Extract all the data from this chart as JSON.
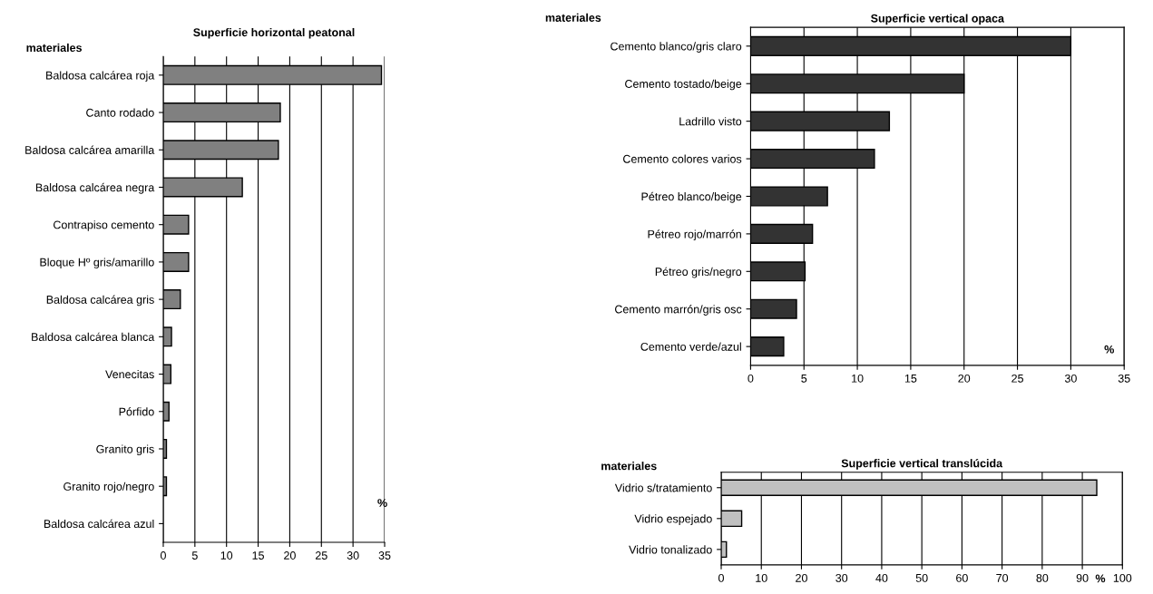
{
  "chart_data": [
    {
      "type": "bar",
      "orientation": "horizontal",
      "title": "Superficie horizontal peatonal",
      "ylabel": "materiales",
      "xlabel": "%",
      "categories": [
        "Baldosa calcárea roja",
        "Canto rodado",
        "Baldosa calcárea amarilla",
        "Baldosa calcárea negra",
        "Contrapiso cemento",
        "Bloque Hº gris/amarillo",
        "Baldosa calcárea gris",
        "Baldosa calcárea blanca",
        "Venecitas",
        "Pórfido",
        "Granito gris",
        "Granito rojo/negro",
        "Baldosa calcárea azul"
      ],
      "values": [
        34.5,
        18.5,
        18.2,
        12.5,
        4.0,
        4.0,
        2.7,
        1.3,
        1.2,
        0.9,
        0.5,
        0.5,
        0
      ],
      "color": "#808080",
      "xlim": [
        0,
        35
      ],
      "xticks": [
        0,
        5,
        10,
        15,
        20,
        25,
        30,
        35
      ],
      "grid": "x"
    },
    {
      "type": "bar",
      "orientation": "horizontal",
      "title": "Superficie vertical opaca",
      "ylabel": "materiales",
      "xlabel": "%",
      "categories": [
        "Cemento blanco/gris claro",
        "Cemento tostado/beige",
        "Ladrillo visto",
        "Cemento colores varios",
        "Pétreo blanco/beige",
        "Pétreo rojo/marrón",
        "Pétreo gris/negro",
        "Cemento marrón/gris osc",
        "Cemento verde/azul"
      ],
      "values": [
        30,
        20,
        13.0,
        11.6,
        7.2,
        5.8,
        5.1,
        4.3,
        3.1
      ],
      "color": "#333333",
      "xlim": [
        0,
        35
      ],
      "xticks": [
        0,
        5,
        10,
        15,
        20,
        25,
        30,
        35
      ],
      "grid": "x"
    },
    {
      "type": "bar",
      "orientation": "horizontal",
      "title": "Superficie vertical translúcida",
      "ylabel": "materiales",
      "xlabel": "%",
      "categories": [
        "Vidrio s/tratamiento",
        "Vidrio espejado",
        "Vidrio tonalizado"
      ],
      "values": [
        93.6,
        5.1,
        1.3
      ],
      "color": "#c0c0c0",
      "xlim": [
        0,
        100
      ],
      "xticks": [
        0,
        10,
        20,
        30,
        40,
        50,
        60,
        70,
        80,
        90,
        100
      ],
      "grid": "x"
    }
  ]
}
